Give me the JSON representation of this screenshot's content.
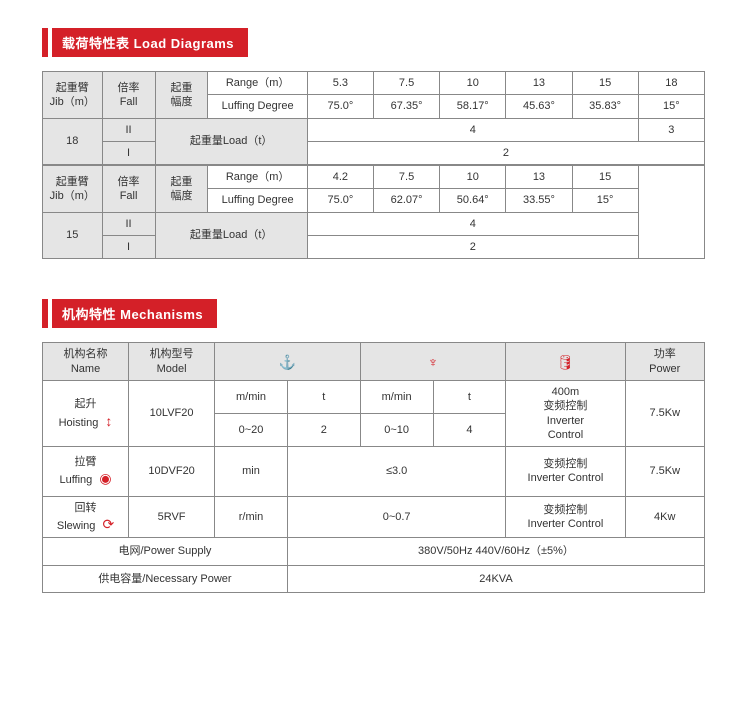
{
  "section1": {
    "title": "载荷特性表  Load Diagrams",
    "t18": {
      "h_jib": "起重臂\nJib（m）",
      "h_fall": "倍率\nFall",
      "h_luff": "起重\n幅度",
      "row_range_label": "Range（m）",
      "row_range": [
        "5.3",
        "7.5",
        "10",
        "13",
        "15",
        "18"
      ],
      "row_deg_label": "Luffing Degree",
      "row_deg": [
        "75.0°",
        "67.35°",
        "58.17°",
        "45.63°",
        "35.83°",
        "15°"
      ],
      "jib_val": "18",
      "fall_II": "II",
      "fall_I": "I",
      "load_label": "起重量Load（t）",
      "load_II_span": "4",
      "load_II_last": "3",
      "load_I": "2"
    },
    "t15": {
      "h_jib": "起重臂\nJib（m）",
      "h_fall": "倍率\nFall",
      "h_luff": "起重\n幅度",
      "row_range_label": "Range（m）",
      "row_range": [
        "4.2",
        "7.5",
        "10",
        "13",
        "15"
      ],
      "row_deg_label": "Luffing Degree",
      "row_deg": [
        "75.0°",
        "62.07°",
        "50.64°",
        "33.55°",
        "15°"
      ],
      "jib_val": "15",
      "fall_II": "II",
      "fall_I": "I",
      "load_label": "起重量Load（t）",
      "load_II": "4",
      "load_I": "2"
    }
  },
  "section2": {
    "title": "机构特性  Mechanisms",
    "headers": {
      "name": "机构名称\nName",
      "model": "机构型号\nModel",
      "power": "功率\nPower"
    },
    "hoisting": {
      "name": "起升\nHoisting",
      "model": "10LVF20",
      "u1": "m/min",
      "u2": "t",
      "u3": "m/min",
      "u4": "t",
      "v1": "0~20",
      "v2": "2",
      "v3": "0~10",
      "v4": "4",
      "ctrl": "400m\n变频控制\nInverter\nControl",
      "power": "7.5Kw"
    },
    "luffing": {
      "name": "拉臂\nLuffing",
      "model": "10DVF20",
      "unit": "min",
      "val": "≤3.0",
      "ctrl": "变频控制\nInverter Control",
      "power": "7.5Kw"
    },
    "slewing": {
      "name": "回转\nSlewing",
      "model": "5RVF",
      "unit": "r/min",
      "val": "0~0.7",
      "ctrl": "变频控制\nInverter Control",
      "power": "4Kw"
    },
    "supply": {
      "label": "电网/Power Supply",
      "val": "380V/50Hz  440V/60Hz（±5%）"
    },
    "necessary": {
      "label": "供电容量/Necessary Power",
      "val": "24KVA"
    },
    "colors": {
      "accent": "#d42028"
    }
  }
}
